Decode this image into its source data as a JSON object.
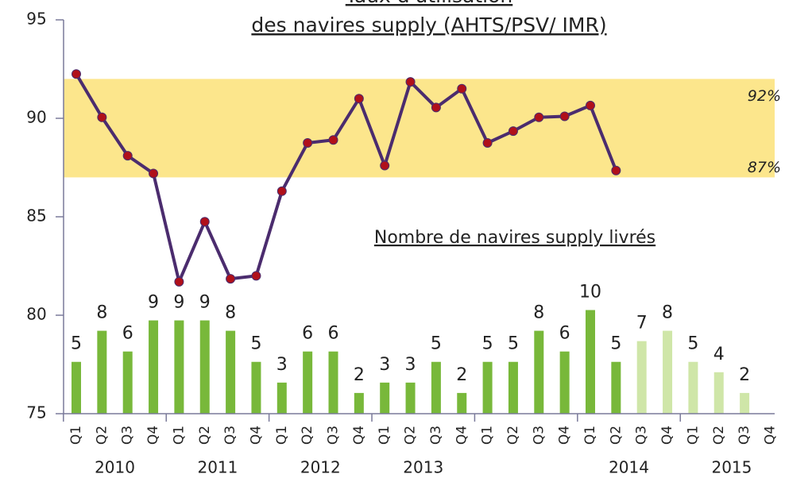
{
  "chart_data": {
    "type": "line_bar",
    "title": [
      "Taux d'utilisation",
      "des navires supply (AHTS/PSV/ IMR)"
    ],
    "annotation": "Nombre de navires supply livrés",
    "categories": [
      "Q1",
      "Q2",
      "Q3",
      "Q4",
      "Q1",
      "Q2",
      "Q3",
      "Q4",
      "Q1",
      "Q2",
      "Q3",
      "Q4",
      "Q1",
      "Q2",
      "Q3",
      "Q4",
      "Q1",
      "Q2",
      "Q3",
      "Q4",
      "Q1",
      "Q2",
      "Q3",
      "Q4",
      "Q1",
      "Q2",
      "Q3",
      "Q4"
    ],
    "groups": [
      "2010",
      "2011",
      "2012",
      "2013",
      null,
      "2014",
      "2015"
    ],
    "band": {
      "from": 87,
      "to": 92,
      "color": "#fce68c",
      "labels": [
        "92%",
        "87%"
      ]
    },
    "series": [
      {
        "type": "line",
        "color": "#4b2c6e",
        "marker_color": "#b0101a",
        "values": [
          92.25,
          90.05,
          88.1,
          87.2,
          81.7,
          84.75,
          81.85,
          82.0,
          86.3,
          88.75,
          88.9,
          91.0,
          87.6,
          91.85,
          90.55,
          91.5,
          88.75,
          89.35,
          90.05,
          90.1,
          90.65,
          87.35,
          null,
          null,
          null,
          null,
          null,
          null
        ]
      },
      {
        "type": "bar",
        "axis": "y2",
        "values": [
          5,
          8,
          6,
          9,
          9,
          9,
          8,
          5,
          3,
          6,
          6,
          2,
          3,
          3,
          5,
          2,
          5,
          5,
          8,
          6,
          10,
          5,
          7,
          8,
          5,
          4,
          2,
          null
        ],
        "colors": [
          "#78b83a",
          "#78b83a",
          "#78b83a",
          "#78b83a",
          "#78b83a",
          "#78b83a",
          "#78b83a",
          "#78b83a",
          "#78b83a",
          "#78b83a",
          "#78b83a",
          "#78b83a",
          "#78b83a",
          "#78b83a",
          "#78b83a",
          "#78b83a",
          "#78b83a",
          "#78b83a",
          "#78b83a",
          "#78b83a",
          "#78b83a",
          "#78b83a",
          "#cfe6a8",
          "#cfe6a8",
          "#cfe6a8",
          "#cfe6a8",
          "#cfe6a8",
          null
        ]
      }
    ],
    "ylim": [
      75,
      95
    ],
    "yticks": [
      75,
      80,
      85,
      90,
      95
    ],
    "y2lim": [
      0,
      38
    ]
  }
}
